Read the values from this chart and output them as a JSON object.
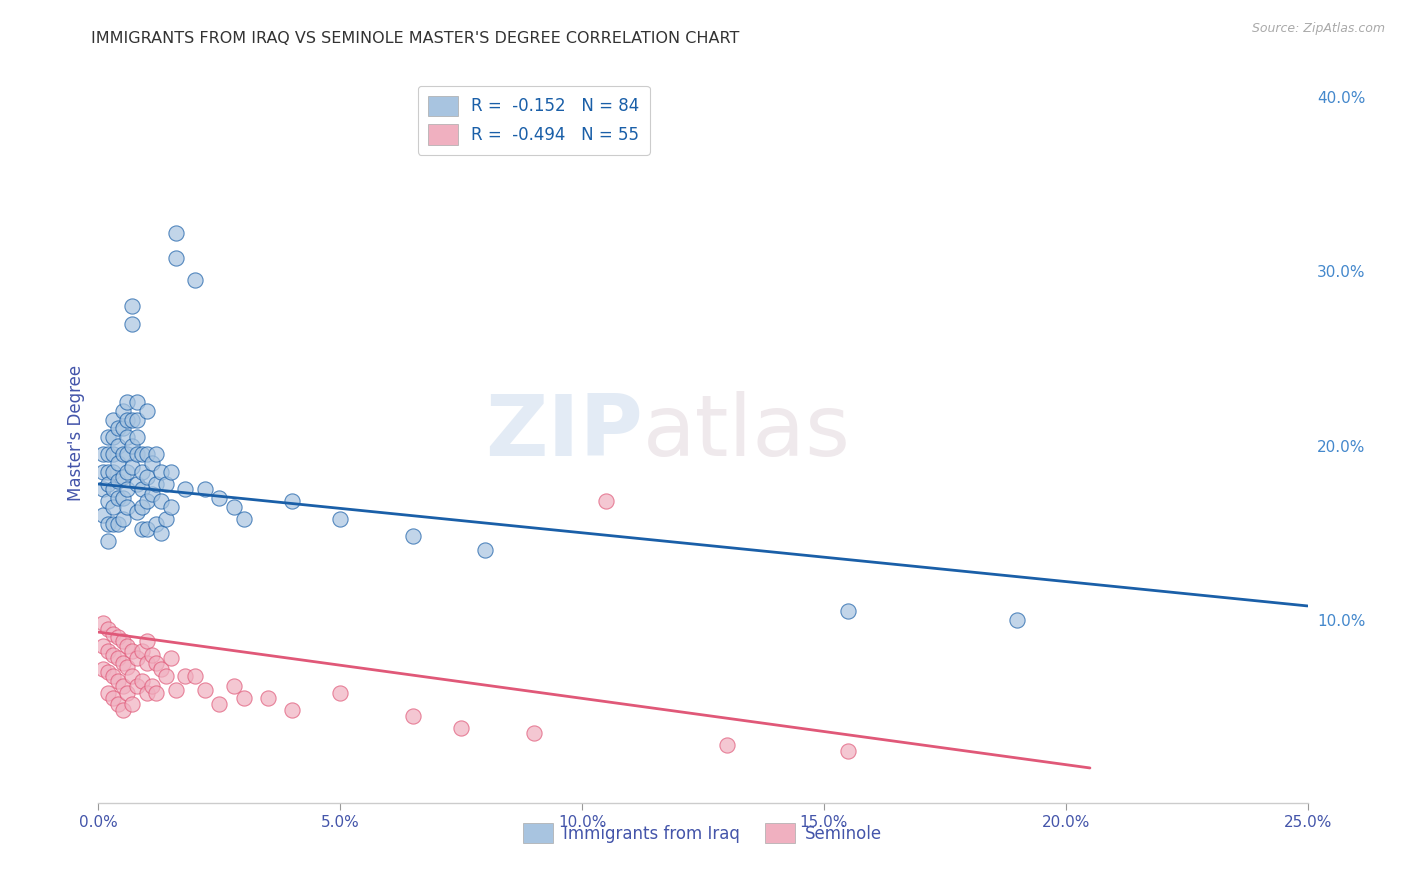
{
  "title": "IMMIGRANTS FROM IRAQ VS SEMINOLE MASTER'S DEGREE CORRELATION CHART",
  "source": "Source: ZipAtlas.com",
  "ylabel": "Master's Degree",
  "xlim": [
    0.0,
    0.25
  ],
  "ylim": [
    -0.005,
    0.42
  ],
  "xtick_labels": [
    "0.0%",
    "",
    "",
    "",
    "",
    "",
    "",
    "",
    "",
    "",
    "5.0%",
    "",
    "",
    "",
    "",
    "",
    "",
    "",
    "",
    "",
    "10.0%",
    "",
    "",
    "",
    "",
    "",
    "",
    "",
    "",
    "",
    "15.0%",
    "",
    "",
    "",
    "",
    "",
    "",
    "",
    "",
    "",
    "20.0%",
    "",
    "",
    "",
    "",
    "",
    "",
    "",
    "",
    "",
    "25.0%"
  ],
  "xtick_vals": [
    0.0,
    0.005,
    0.01,
    0.015,
    0.02,
    0.025,
    0.03,
    0.035,
    0.04,
    0.045,
    0.05,
    0.055,
    0.06,
    0.065,
    0.07,
    0.075,
    0.08,
    0.085,
    0.09,
    0.095,
    0.1,
    0.105,
    0.11,
    0.115,
    0.12,
    0.125,
    0.13,
    0.135,
    0.14,
    0.145,
    0.15,
    0.155,
    0.16,
    0.165,
    0.17,
    0.175,
    0.18,
    0.185,
    0.19,
    0.195,
    0.2,
    0.205,
    0.21,
    0.215,
    0.22,
    0.225,
    0.23,
    0.235,
    0.24,
    0.245,
    0.25
  ],
  "xtick_major_vals": [
    0.0,
    0.05,
    0.1,
    0.15,
    0.2,
    0.25
  ],
  "xtick_major_labels": [
    "0.0%",
    "5.0%",
    "10.0%",
    "15.0%",
    "20.0%",
    "25.0%"
  ],
  "ytick_right_labels": [
    "10.0%",
    "20.0%",
    "30.0%",
    "40.0%"
  ],
  "ytick_right_vals": [
    0.1,
    0.2,
    0.3,
    0.4
  ],
  "legend_label_blue": "R =  -0.152   N = 84",
  "legend_label_pink": "R =  -0.494   N = 55",
  "blue_scatter_x": [
    0.001,
    0.001,
    0.001,
    0.001,
    0.002,
    0.002,
    0.002,
    0.002,
    0.002,
    0.002,
    0.002,
    0.003,
    0.003,
    0.003,
    0.003,
    0.003,
    0.003,
    0.003,
    0.004,
    0.004,
    0.004,
    0.004,
    0.004,
    0.004,
    0.005,
    0.005,
    0.005,
    0.005,
    0.005,
    0.005,
    0.006,
    0.006,
    0.006,
    0.006,
    0.006,
    0.006,
    0.006,
    0.007,
    0.007,
    0.007,
    0.007,
    0.007,
    0.008,
    0.008,
    0.008,
    0.008,
    0.008,
    0.008,
    0.009,
    0.009,
    0.009,
    0.009,
    0.009,
    0.01,
    0.01,
    0.01,
    0.01,
    0.01,
    0.011,
    0.011,
    0.012,
    0.012,
    0.012,
    0.013,
    0.013,
    0.013,
    0.014,
    0.014,
    0.015,
    0.015,
    0.016,
    0.016,
    0.018,
    0.02,
    0.022,
    0.025,
    0.028,
    0.03,
    0.04,
    0.05,
    0.065,
    0.08,
    0.155,
    0.19
  ],
  "blue_scatter_y": [
    0.195,
    0.185,
    0.175,
    0.16,
    0.205,
    0.195,
    0.185,
    0.178,
    0.168,
    0.155,
    0.145,
    0.215,
    0.205,
    0.195,
    0.185,
    0.175,
    0.165,
    0.155,
    0.21,
    0.2,
    0.19,
    0.18,
    0.17,
    0.155,
    0.22,
    0.21,
    0.195,
    0.182,
    0.17,
    0.158,
    0.225,
    0.215,
    0.205,
    0.195,
    0.185,
    0.175,
    0.165,
    0.28,
    0.27,
    0.215,
    0.2,
    0.188,
    0.225,
    0.215,
    0.205,
    0.195,
    0.178,
    0.162,
    0.195,
    0.185,
    0.175,
    0.165,
    0.152,
    0.22,
    0.195,
    0.182,
    0.168,
    0.152,
    0.19,
    0.172,
    0.195,
    0.178,
    0.155,
    0.185,
    0.168,
    0.15,
    0.178,
    0.158,
    0.185,
    0.165,
    0.322,
    0.308,
    0.175,
    0.295,
    0.175,
    0.17,
    0.165,
    0.158,
    0.168,
    0.158,
    0.148,
    0.14,
    0.105,
    0.1
  ],
  "pink_scatter_x": [
    0.001,
    0.001,
    0.001,
    0.002,
    0.002,
    0.002,
    0.002,
    0.003,
    0.003,
    0.003,
    0.003,
    0.004,
    0.004,
    0.004,
    0.004,
    0.005,
    0.005,
    0.005,
    0.005,
    0.006,
    0.006,
    0.006,
    0.007,
    0.007,
    0.007,
    0.008,
    0.008,
    0.009,
    0.009,
    0.01,
    0.01,
    0.01,
    0.011,
    0.011,
    0.012,
    0.012,
    0.013,
    0.014,
    0.015,
    0.016,
    0.018,
    0.02,
    0.022,
    0.025,
    0.028,
    0.03,
    0.035,
    0.04,
    0.05,
    0.065,
    0.075,
    0.09,
    0.105,
    0.13,
    0.155
  ],
  "pink_scatter_y": [
    0.098,
    0.085,
    0.072,
    0.095,
    0.082,
    0.07,
    0.058,
    0.092,
    0.08,
    0.068,
    0.055,
    0.09,
    0.078,
    0.065,
    0.052,
    0.088,
    0.075,
    0.062,
    0.048,
    0.085,
    0.073,
    0.058,
    0.082,
    0.068,
    0.052,
    0.078,
    0.062,
    0.082,
    0.065,
    0.088,
    0.075,
    0.058,
    0.08,
    0.062,
    0.075,
    0.058,
    0.072,
    0.068,
    0.078,
    0.06,
    0.068,
    0.068,
    0.06,
    0.052,
    0.062,
    0.055,
    0.055,
    0.048,
    0.058,
    0.045,
    0.038,
    0.035,
    0.168,
    0.028,
    0.025
  ],
  "blue_line_x": [
    0.0,
    0.25
  ],
  "blue_line_y": [
    0.178,
    0.108
  ],
  "pink_line_x": [
    0.0,
    0.205
  ],
  "pink_line_y": [
    0.093,
    0.015
  ],
  "watermark_zip": "ZIP",
  "watermark_atlas": "atlas",
  "blue_color": "#a8c4e0",
  "pink_color": "#f0b0c0",
  "blue_line_color": "#1a5fa8",
  "pink_line_color": "#e05878",
  "grid_color": "#d8d8d8",
  "bg_color": "#ffffff",
  "title_color": "#333333",
  "axis_label_color": "#4455aa",
  "right_tick_color": "#4488cc"
}
